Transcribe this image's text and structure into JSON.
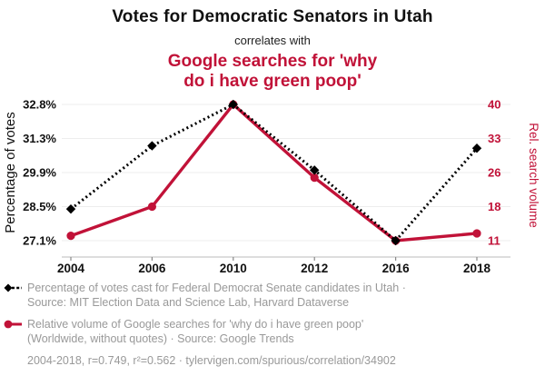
{
  "header": {
    "title": "Votes for Democratic Senators in Utah",
    "connector": "correlates with",
    "subtitle_line1": "Google searches for 'why",
    "subtitle_line2": "do i have green poop'"
  },
  "chart_data": {
    "type": "line",
    "x": [
      2004,
      2006,
      2010,
      2012,
      2016,
      2018
    ],
    "x_ticks": [
      "2004",
      "2006",
      "2010",
      "2012",
      "2016",
      "2018"
    ],
    "series": [
      {
        "name": "Percentage of votes cast for Federal Democrat Senate candidates in Utah",
        "axis": "left",
        "color": "#000000",
        "style": "dotted",
        "marker": "diamond",
        "values": [
          28.4,
          31.0,
          32.8,
          30.0,
          27.1,
          30.9
        ]
      },
      {
        "name": "Relative volume of Google searches for 'why do i have green poop'",
        "axis": "right",
        "color": "#C11238",
        "style": "solid",
        "marker": "circle",
        "values": [
          12,
          18,
          40,
          24.8,
          11,
          12.5
        ]
      }
    ],
    "left_axis": {
      "label": "Percentage of votes",
      "ticks": [
        "32.8%",
        "31.3%",
        "29.9%",
        "28.5%",
        "27.1%"
      ],
      "tick_values": [
        32.8,
        31.3,
        29.9,
        28.5,
        27.1
      ]
    },
    "right_axis": {
      "label": "Rel. search volume",
      "ticks": [
        "40",
        "33",
        "26",
        "18",
        "11"
      ],
      "tick_values": [
        40,
        33,
        26,
        18,
        11
      ]
    },
    "grid": true,
    "legend_position": "bottom"
  },
  "legend": {
    "items": [
      {
        "marker": "black-diamond-dotted-line",
        "line1": "Percentage of votes cast for Federal Democrat Senate candidates in Utah ·",
        "line2": "Source: MIT Election Data and Science Lab, Harvard Dataverse"
      },
      {
        "marker": "red-circle-solid-line",
        "line1": "Relative volume of Google searches for 'why do i have green poop'",
        "line2": "(Worldwide, without quotes) · Source: Google Trends"
      }
    ],
    "footer": "2004-2018, r=0.749, r²=0.562 · tylervigen.com/spurious/correlation/34902"
  },
  "colors": {
    "accent_red": "#C11238",
    "series_black": "#000000",
    "grid_line": "#ededed",
    "axis_line": "#bbbbbb",
    "tick_mark": "#888888",
    "legend_text": "#999999"
  }
}
